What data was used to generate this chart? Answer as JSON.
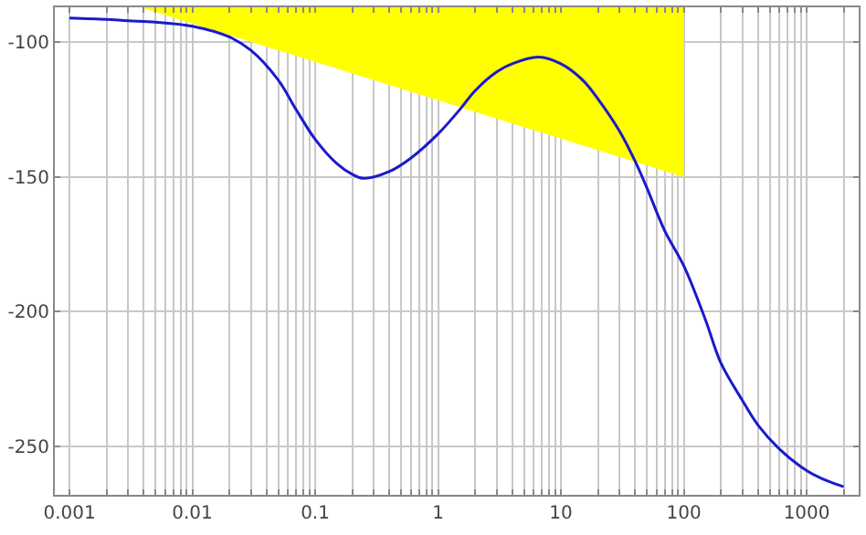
{
  "chart_data": {
    "type": "line",
    "log": "x",
    "grid": true,
    "marker": "none",
    "line_style": "solid",
    "xlim": [
      0.00076,
      2650
    ],
    "ylim": [
      -268,
      -87
    ],
    "yticks": [
      -100,
      -150,
      -200,
      -250
    ],
    "xticks": [
      {
        "value": 0.001,
        "label": "0.001"
      },
      {
        "value": 0.002,
        "label": null
      },
      {
        "value": 0.003,
        "label": null
      },
      {
        "value": 0.004,
        "label": null
      },
      {
        "value": 0.005,
        "label": null
      },
      {
        "value": 0.006,
        "label": null
      },
      {
        "value": 0.007,
        "label": null
      },
      {
        "value": 0.008,
        "label": null
      },
      {
        "value": 0.009,
        "label": null
      },
      {
        "value": 0.01,
        "label": "0.01"
      },
      {
        "value": 0.02,
        "label": null
      },
      {
        "value": 0.03,
        "label": null
      },
      {
        "value": 0.04,
        "label": null
      },
      {
        "value": 0.05,
        "label": null
      },
      {
        "value": 0.06,
        "label": null
      },
      {
        "value": 0.07,
        "label": null
      },
      {
        "value": 0.08,
        "label": null
      },
      {
        "value": 0.09,
        "label": null
      },
      {
        "value": 0.1,
        "label": "0.1"
      },
      {
        "value": 0.2,
        "label": null
      },
      {
        "value": 0.3,
        "label": null
      },
      {
        "value": 0.4,
        "label": null
      },
      {
        "value": 0.5,
        "label": null
      },
      {
        "value": 0.6,
        "label": null
      },
      {
        "value": 0.7,
        "label": null
      },
      {
        "value": 0.8,
        "label": null
      },
      {
        "value": 0.9,
        "label": null
      },
      1,
      {
        "value": 2,
        "label": null
      },
      {
        "value": 3,
        "label": null
      },
      {
        "value": 4,
        "label": null
      },
      {
        "value": 5,
        "label": null
      },
      {
        "value": 6,
        "label": null
      },
      {
        "value": 7,
        "label": null
      },
      {
        "value": 8,
        "label": null
      },
      {
        "value": 9,
        "label": null
      },
      10,
      {
        "value": 20,
        "label": null
      },
      {
        "value": 30,
        "label": null
      },
      {
        "value": 40,
        "label": null
      },
      {
        "value": 50,
        "label": null
      },
      {
        "value": 60,
        "label": null
      },
      {
        "value": 70,
        "label": null
      },
      {
        "value": 80,
        "label": null
      },
      {
        "value": 90,
        "label": null
      },
      100,
      {
        "value": 200,
        "label": null
      },
      {
        "value": 300,
        "label": null
      },
      {
        "value": 400,
        "label": null
      },
      {
        "value": 500,
        "label": null
      },
      {
        "value": 600,
        "label": null
      },
      {
        "value": 700,
        "label": null
      },
      {
        "value": 800,
        "label": null
      },
      {
        "value": 900,
        "label": null
      },
      1000,
      {
        "value": 2000,
        "label": null
      }
    ],
    "series": [
      {
        "type": "area",
        "color": "#ffff00",
        "x": [
          0.0038,
          100
        ],
        "values": [
          -87,
          -150
        ]
      },
      {
        "color": "#1a1acc",
        "x": [
          0.001,
          0.002,
          0.003,
          0.005,
          0.01,
          0.02,
          0.03,
          0.05,
          0.07,
          0.1,
          0.15,
          0.2,
          0.25,
          0.4,
          0.6,
          1,
          1.5,
          2,
          3,
          4,
          6.6,
          10,
          15,
          20,
          30,
          40,
          50,
          70,
          100,
          150,
          200,
          300,
          400,
          600,
          1000,
          1500,
          2000
        ],
        "values": [
          -91,
          -91.5,
          -92,
          -92.5,
          -94,
          -98,
          -103,
          -114,
          -125,
          -136,
          -145,
          -149,
          -150.5,
          -148,
          -143,
          -134,
          -125,
          -118,
          -111,
          -108,
          -105.5,
          -108,
          -114,
          -121,
          -133,
          -144,
          -154,
          -170,
          -183,
          -203,
          -219,
          -233,
          -242,
          -251,
          -259,
          -263,
          -265
        ]
      }
    ]
  }
}
